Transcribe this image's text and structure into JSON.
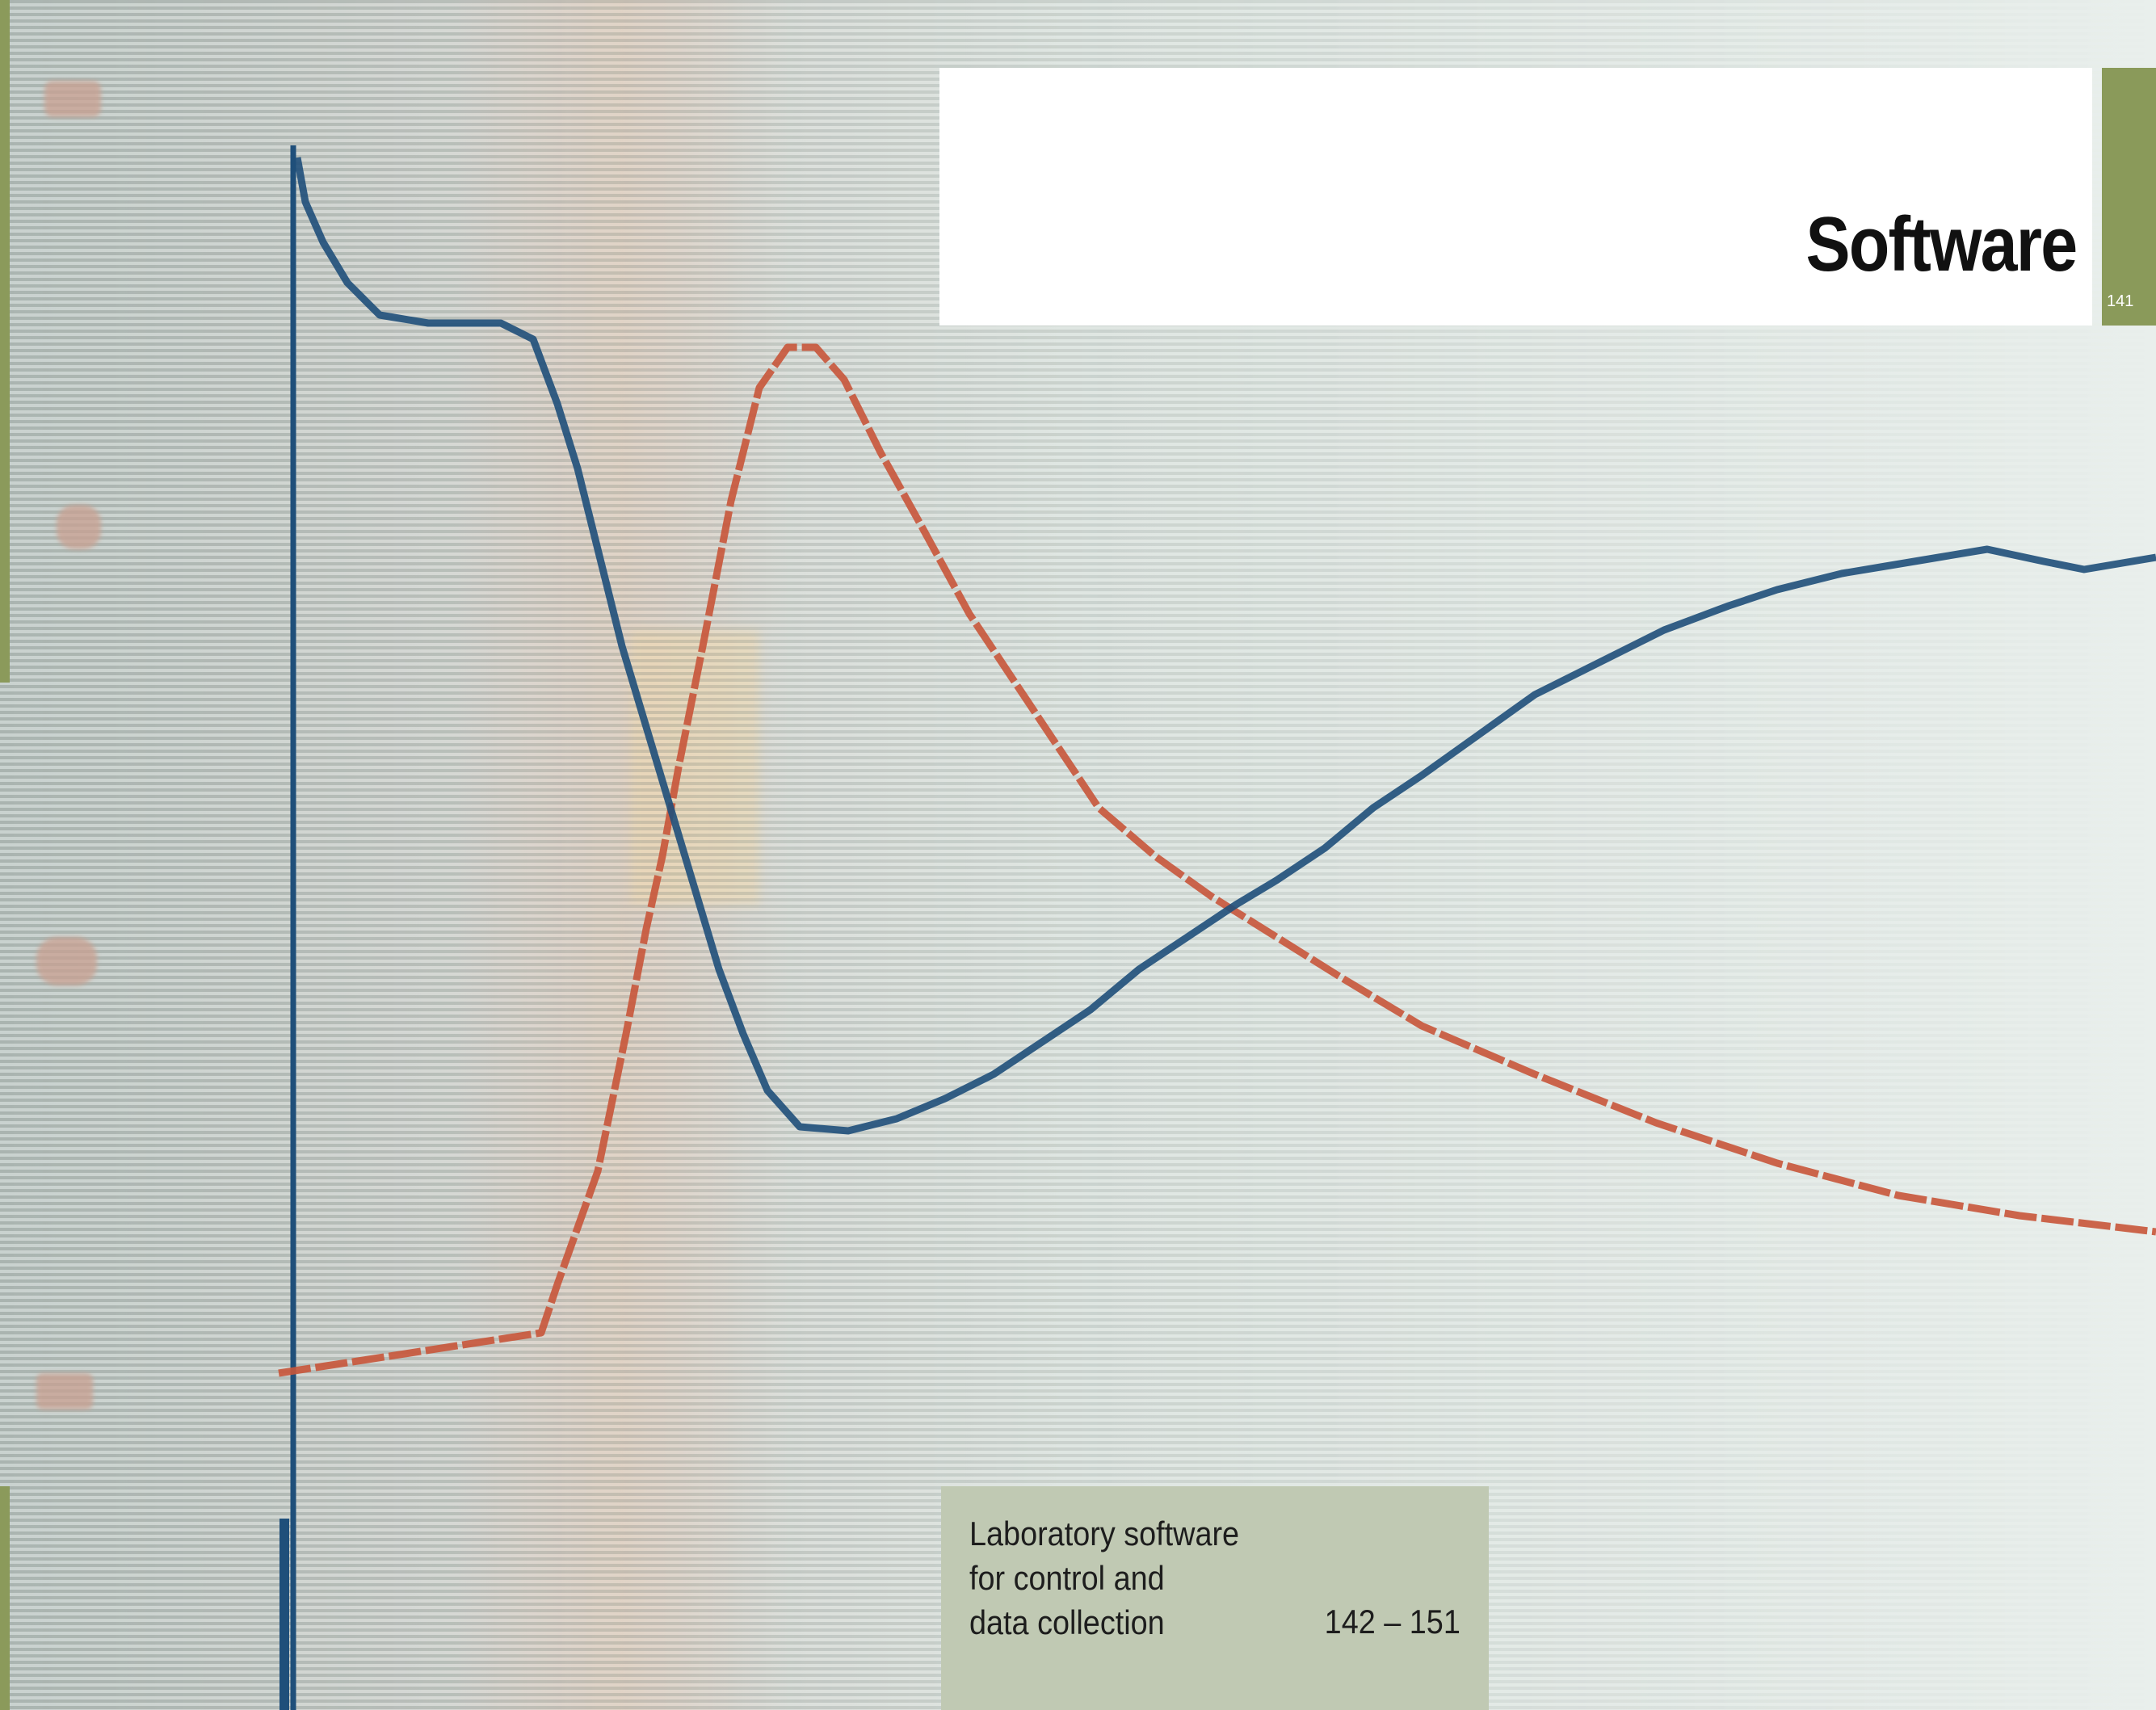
{
  "header": {
    "title": "Software",
    "page_number": "141"
  },
  "toc": {
    "entry_lines": [
      "Laboratory software",
      "for control and",
      "data collection"
    ],
    "pages": "142 – 151"
  },
  "photo": {
    "description_icon": "screen-chart-photo",
    "colors": {
      "blue_trace": "#1f4f7a",
      "red_trace": "#c8553a",
      "accent_green": "#8a9a5a",
      "toc_background": "#c0c9b3"
    }
  }
}
